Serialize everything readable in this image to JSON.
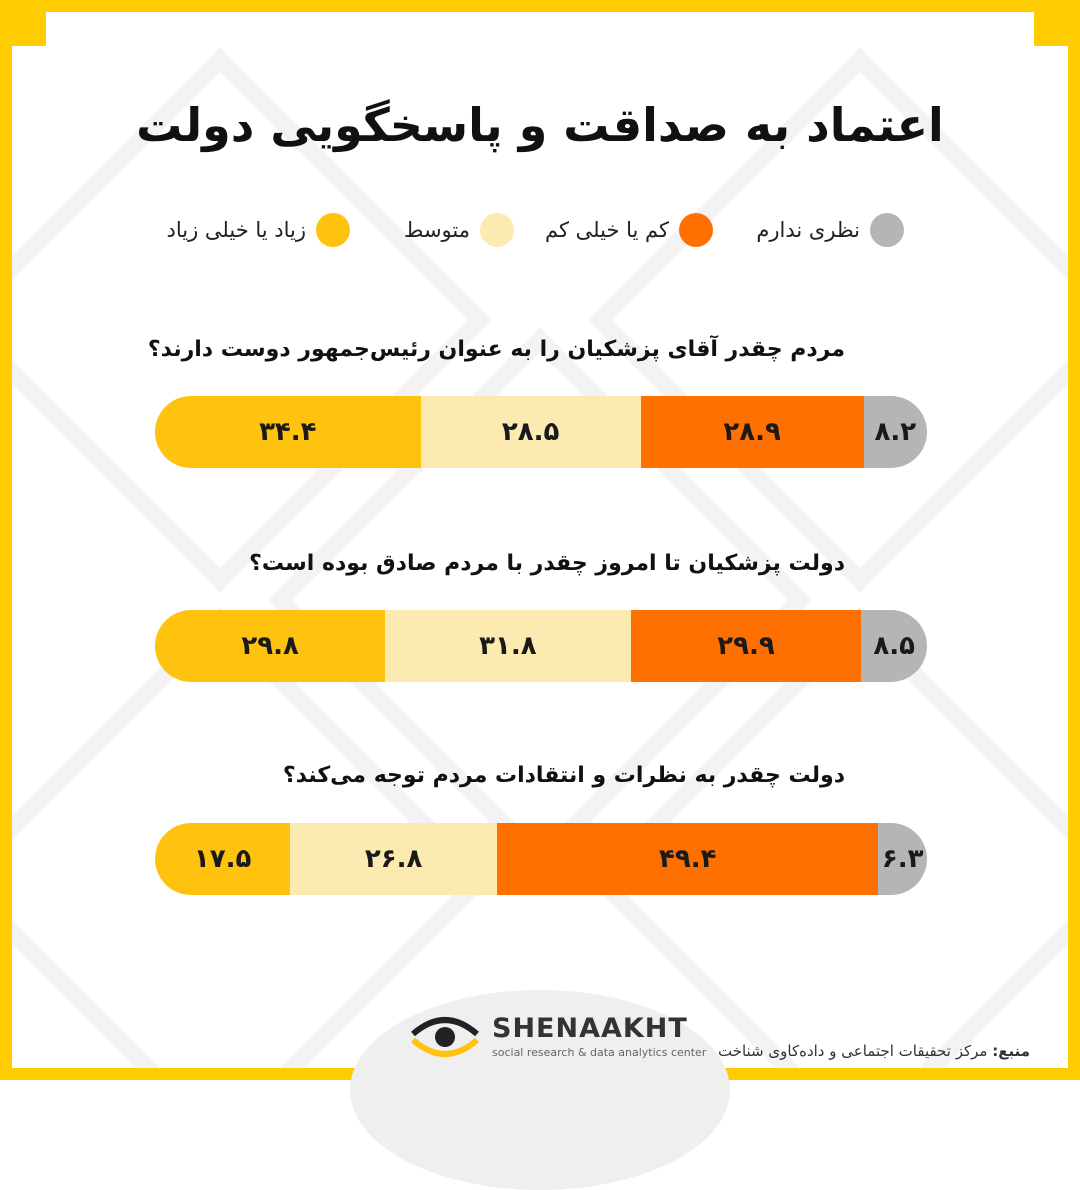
{
  "title": "اعتماد به صداقت و پاسخگویی دولت",
  "colors": {
    "high": "#FFC20E",
    "medium": "#FCEBB0",
    "low": "#FF7000",
    "none": "#B5B5B5",
    "frame": "#FFCC00"
  },
  "legend": [
    {
      "label": "نظری ندارم",
      "color": "#B5B5B5"
    },
    {
      "label": "کم یا خیلی کم",
      "color": "#FF7000"
    },
    {
      "label": "متوسط",
      "color": "#FCEBB0"
    },
    {
      "label": "زیاد یا خیلی زیاد",
      "color": "#FFC20E"
    }
  ],
  "chart_data": {
    "type": "bar",
    "orientation": "horizontal-stacked-100",
    "title": "اعتماد به صداقت و پاسخگویی دولت",
    "categories": [
      "مردم چقدر آقای پزشکیان را به عنوان رئیس‌جمهور دوست دارند؟",
      "دولت پزشکیان تا امروز چقدر با مردم صادق بوده است؟",
      "دولت چقدر به نظرات و انتقادات مردم توجه می‌کند؟"
    ],
    "series": [
      {
        "name": "نظری ندارم",
        "values": [
          8.2,
          8.5,
          6.3
        ],
        "labels": [
          "۸.۲",
          "۸.۵",
          "۶.۳"
        ]
      },
      {
        "name": "کم یا خیلی کم",
        "values": [
          28.9,
          29.9,
          49.4
        ],
        "labels": [
          "۲۸.۹",
          "۲۹.۹",
          "۴۹.۴"
        ]
      },
      {
        "name": "متوسط",
        "values": [
          28.5,
          31.8,
          26.8
        ],
        "labels": [
          "۲۸.۵",
          "۳۱.۸",
          "۲۶.۸"
        ]
      },
      {
        "name": "زیاد یا خیلی زیاد",
        "values": [
          34.4,
          29.8,
          17.5
        ],
        "labels": [
          "۳۴.۴",
          "۲۹.۸",
          "۱۷.۵"
        ]
      }
    ],
    "legend_position": "top"
  },
  "footer": {
    "brand": "SHENAAKHT",
    "brand_sub": "social research & data analytics center",
    "source_label": "منبع:",
    "source_text": "مرکز تحقیقات اجتماعی و داده‌کاوی شناخت"
  }
}
